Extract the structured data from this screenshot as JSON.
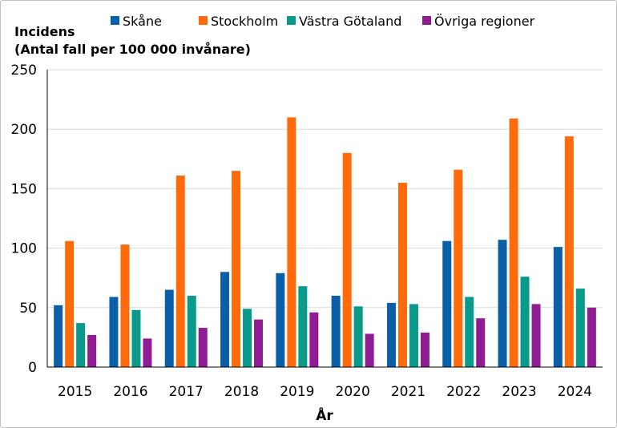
{
  "chart_data": {
    "type": "bar",
    "ylabel_line1": "Incidens",
    "ylabel_line2": "(Antal fall per 100 000 invånare)",
    "xlabel": "År",
    "ylim": [
      0,
      250
    ],
    "yticks": [
      0,
      50,
      100,
      150,
      200,
      250
    ],
    "grid": true,
    "legend_position": "top",
    "categories": [
      "2015",
      "2016",
      "2017",
      "2018",
      "2019",
      "2020",
      "2021",
      "2022",
      "2023",
      "2024"
    ],
    "series": [
      {
        "name": "Skåne",
        "color": "#0a5fa8",
        "values": [
          52,
          59,
          65,
          80,
          79,
          60,
          54,
          106,
          107,
          101
        ]
      },
      {
        "name": "Stockholm",
        "color": "#ff6a0a",
        "values": [
          106,
          103,
          161,
          165,
          210,
          180,
          155,
          166,
          209,
          194
        ]
      },
      {
        "name": "Västra Götaland",
        "color": "#0a9a8c",
        "values": [
          37,
          48,
          60,
          49,
          68,
          51,
          53,
          59,
          76,
          66
        ]
      },
      {
        "name": "Övriga regioner",
        "color": "#8e1c93",
        "values": [
          27,
          24,
          33,
          40,
          46,
          28,
          29,
          41,
          53,
          50
        ]
      }
    ]
  }
}
